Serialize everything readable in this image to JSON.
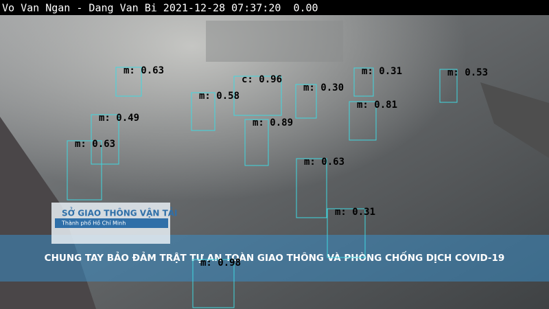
{
  "header": {
    "text": "Vo Van Ngan - Dang Van Bi 2021-12-28 07:37:20  0.00"
  },
  "detections": [
    {
      "label": "m: 0.63"
    },
    {
      "label": "c: 0.96"
    },
    {
      "label": "m: 0.30"
    },
    {
      "label": "m: 0.31"
    },
    {
      "label": "m: 0.53"
    },
    {
      "label": "m: 0.58"
    },
    {
      "label": "m: 0.81"
    },
    {
      "label": "m: 0.49"
    },
    {
      "label": "m: 0.89"
    },
    {
      "label": "m: 0.63"
    },
    {
      "label": "m: 0.63"
    },
    {
      "label": "m: 0.31"
    },
    {
      "label": "m: 0.98"
    }
  ],
  "logo": {
    "title": "SỞ GIAO THÔNG VẬN TẢI",
    "subtitle": "Thành phố Hồ Chí Minh"
  },
  "banner": {
    "text": "CHUNG TAY BẢO ĐẢM TRẬT TỰ AN TOÀN GIAO THÔNG VÀ PHÒNG CHỐNG DỊCH COVID-19"
  }
}
